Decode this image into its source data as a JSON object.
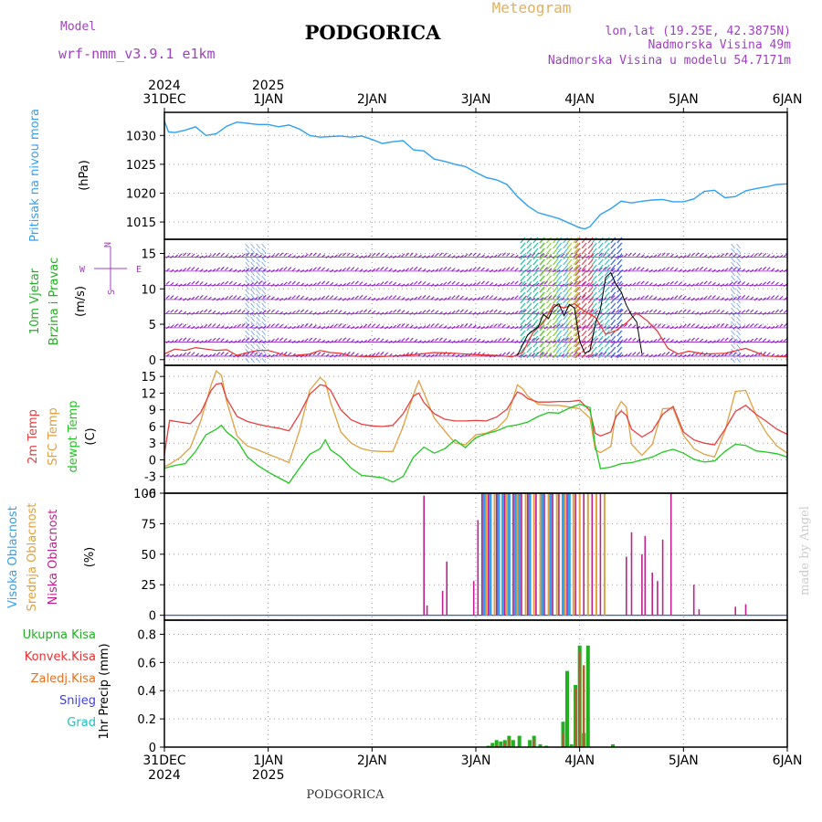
{
  "header": {
    "model_label": "Model",
    "model_name": "wrf-nmm_v3.9.1 e1km",
    "title": "PODGORICA",
    "meteogram_label": "Meteogram",
    "lonlat": "lon,lat (19.25E, 42.3875N)",
    "elevation": "Nadmorska Visina 49m",
    "model_elevation": "Nadmorska Visina u modelu 54.7171m"
  },
  "footer": {
    "station": "PODGORICA",
    "credit": "made by Angel"
  },
  "colors": {
    "pressure": "#30a0f0",
    "wind_speed": "#e83030",
    "wind_ref": "#000000",
    "temp_2m": "#e84040",
    "temp_sfc": "#e0a040",
    "dewpoint": "#20c820",
    "cloud_high": "#30a0f0",
    "cloud_mid": "#e0a040",
    "cloud_low": "#c02090",
    "precip_total": "#20b020",
    "precip_conv": "#e83030",
    "precip_frz": "#e87020",
    "snow": "#4040e0",
    "hail": "#20c0c0",
    "barb_purple": "#9020c0"
  },
  "chart_data": [
    {
      "type": "line",
      "panel": "pressure",
      "ylabel_lines": [
        "Pritisak na nivou mora",
        "(hPa)"
      ],
      "x_unit": "days from 31DEC 00UTC",
      "xlim": [
        0,
        6
      ],
      "ylim": [
        1012,
        1034
      ],
      "yticks": [
        1015,
        1020,
        1025,
        1030
      ],
      "grid": true,
      "x_top_labels": [
        {
          "day": "31DEC",
          "year": "2024"
        },
        {
          "day": "1JAN",
          "year": "2025"
        },
        {
          "day": "2JAN",
          "year": ""
        },
        {
          "day": "3JAN",
          "year": ""
        },
        {
          "day": "4JAN",
          "year": ""
        },
        {
          "day": "5JAN",
          "year": ""
        },
        {
          "day": "6JAN",
          "year": ""
        }
      ],
      "series": [
        {
          "x": [
            0,
            0.04,
            0.1,
            0.2,
            0.3,
            0.4,
            0.5,
            0.6,
            0.7,
            0.8,
            0.9,
            1.0,
            1.1,
            1.2,
            1.3,
            1.4,
            1.5,
            1.6,
            1.7,
            1.8,
            1.9,
            2.0,
            2.1,
            2.2,
            2.3,
            2.4,
            2.5,
            2.6,
            2.7,
            2.8,
            2.9,
            3.0,
            3.1,
            3.2,
            3.3,
            3.4,
            3.5,
            3.6,
            3.7,
            3.8,
            3.9,
            4.0,
            4.05,
            4.1,
            4.2,
            4.3,
            4.4,
            4.5,
            4.6,
            4.7,
            4.8,
            4.9,
            5.0,
            5.1,
            5.2,
            5.3,
            5.4,
            5.5,
            5.6,
            5.7,
            5.8,
            5.9,
            6.0
          ],
          "y": [
            1032.5,
            1030.6,
            1030.5,
            1030.9,
            1031.5,
            1030.0,
            1030.3,
            1031.6,
            1032.3,
            1032.1,
            1031.9,
            1031.9,
            1031.5,
            1031.8,
            1031.1,
            1030.0,
            1029.7,
            1029.8,
            1029.9,
            1029.7,
            1029.9,
            1029.3,
            1028.6,
            1028.9,
            1029.1,
            1027.5,
            1027.3,
            1025.9,
            1025.5,
            1025.0,
            1024.6,
            1023.6,
            1022.7,
            1022.3,
            1021.5,
            1019.4,
            1017.8,
            1016.6,
            1016.1,
            1015.6,
            1014.8,
            1014.0,
            1013.8,
            1014.2,
            1016.3,
            1017.3,
            1018.6,
            1018.3,
            1018.6,
            1018.8,
            1018.9,
            1018.5,
            1018.5,
            1019.0,
            1020.3,
            1020.5,
            1019.2,
            1019.4,
            1020.4,
            1020.8,
            1021.1,
            1021.5,
            1021.6
          ]
        }
      ]
    },
    {
      "type": "line",
      "panel": "wind",
      "ylabel_lines": [
        "10m Vjetar",
        "Brzina i Pravac",
        "(m/s)"
      ],
      "compass": {
        "n": "N",
        "e": "E",
        "w": "W",
        "s": "S"
      },
      "xlim": [
        0,
        6
      ],
      "ylim": [
        -0.8,
        17
      ],
      "yticks": [
        0,
        5,
        10,
        15
      ],
      "grid": true,
      "series": [
        {
          "name": "wind speed",
          "x": [
            0,
            0.1,
            0.2,
            0.3,
            0.4,
            0.5,
            0.6,
            0.7,
            0.8,
            0.9,
            1.0,
            1.2,
            1.4,
            1.5,
            1.6,
            1.7,
            1.8,
            2.0,
            2.2,
            2.4,
            2.6,
            2.8,
            3.0,
            3.2,
            3.35,
            3.45,
            3.55,
            3.65,
            3.75,
            3.85,
            3.95,
            4.05,
            4.15,
            4.25,
            4.35,
            4.45,
            4.55,
            4.65,
            4.75,
            4.85,
            4.95,
            5.05,
            5.2,
            5.4,
            5.6,
            5.8,
            6.0
          ],
          "y": [
            0.8,
            1.5,
            1.3,
            1.7,
            1.5,
            1.3,
            1.4,
            0.6,
            1.0,
            1.3,
            1.3,
            0.5,
            0.8,
            1.3,
            1.0,
            0.9,
            0.5,
            0.4,
            0.5,
            0.7,
            1.0,
            0.9,
            0.7,
            0.6,
            0.4,
            1.0,
            3.8,
            5.2,
            7.8,
            7.3,
            7.9,
            6.8,
            6.0,
            3.6,
            4.1,
            5.2,
            6.6,
            5.5,
            4.0,
            1.6,
            0.8,
            1.2,
            0.8,
            0.9,
            1.6,
            0.5,
            0.4
          ]
        },
        {
          "name": "reference",
          "x": [
            3.4,
            3.45,
            3.5,
            3.55,
            3.6,
            3.65,
            3.7,
            3.75,
            3.8,
            3.85,
            3.9,
            3.95,
            4.0,
            4.05,
            4.1,
            4.15,
            4.2,
            4.25,
            4.3,
            4.35,
            4.4,
            4.45,
            4.5,
            4.55,
            4.6
          ],
          "y": [
            0.6,
            2.1,
            3.5,
            4.1,
            4.6,
            6.4,
            5.8,
            7.4,
            7.9,
            6.2,
            7.8,
            7.3,
            2.6,
            0.9,
            1.3,
            5.0,
            7.1,
            11.6,
            12.3,
            10.6,
            9.6,
            7.7,
            6.3,
            5.3,
            0.8
          ]
        }
      ]
    },
    {
      "type": "line",
      "panel": "temperature",
      "ylabel_lines": [
        "2m Temp",
        "SFC Temp",
        "dewpt Temp",
        "(C)"
      ],
      "xlim": [
        0,
        6
      ],
      "ylim": [
        -6,
        17
      ],
      "yticks": [
        -6,
        -3,
        0,
        3,
        6,
        9,
        12,
        15
      ],
      "grid": true,
      "series": [
        {
          "name": "2m Temp",
          "x": [
            0,
            0.05,
            0.15,
            0.25,
            0.35,
            0.45,
            0.5,
            0.55,
            0.6,
            0.7,
            0.8,
            0.9,
            1.0,
            1.1,
            1.2,
            1.3,
            1.4,
            1.5,
            1.55,
            1.6,
            1.7,
            1.8,
            1.9,
            2.0,
            2.1,
            2.2,
            2.3,
            2.4,
            2.45,
            2.5,
            2.6,
            2.7,
            2.8,
            2.9,
            3.0,
            3.1,
            3.2,
            3.3,
            3.4,
            3.45,
            3.5,
            3.6,
            3.7,
            3.8,
            3.9,
            4.0,
            4.1,
            4.15,
            4.2,
            4.3,
            4.35,
            4.4,
            4.45,
            4.5,
            4.6,
            4.7,
            4.8,
            4.9,
            5.0,
            5.1,
            5.2,
            5.3,
            5.4,
            5.5,
            5.6,
            5.7,
            5.8,
            5.9,
            6.0
          ],
          "y": [
            1.0,
            7.1,
            6.8,
            6.5,
            8.5,
            12.5,
            13.6,
            13.8,
            11.0,
            7.8,
            6.9,
            6.4,
            6.0,
            5.7,
            5.2,
            8.2,
            11.8,
            13.5,
            13.3,
            12.5,
            9.0,
            7.2,
            6.4,
            6.1,
            6.0,
            6.2,
            8.3,
            11.5,
            12.0,
            10.3,
            8.3,
            7.3,
            7.0,
            7.0,
            7.1,
            7.0,
            7.7,
            9.1,
            12.2,
            11.8,
            11.0,
            10.4,
            10.4,
            10.5,
            10.5,
            10.7,
            8.8,
            4.8,
            4.3,
            5.0,
            7.8,
            8.8,
            8.0,
            5.5,
            4.1,
            5.2,
            8.2,
            9.6,
            5.0,
            3.6,
            3.0,
            2.7,
            5.5,
            8.7,
            9.8,
            8.2,
            6.9,
            5.5,
            4.6
          ]
        },
        {
          "name": "SFC Temp",
          "x": [
            0,
            0.05,
            0.15,
            0.25,
            0.35,
            0.45,
            0.5,
            0.55,
            0.6,
            0.7,
            0.8,
            0.9,
            1.0,
            1.1,
            1.2,
            1.3,
            1.4,
            1.5,
            1.55,
            1.6,
            1.7,
            1.8,
            1.9,
            2.0,
            2.1,
            2.2,
            2.3,
            2.4,
            2.45,
            2.5,
            2.6,
            2.7,
            2.8,
            2.9,
            3.0,
            3.1,
            3.2,
            3.3,
            3.4,
            3.45,
            3.5,
            3.6,
            3.7,
            3.8,
            3.9,
            4.0,
            4.1,
            4.15,
            4.2,
            4.3,
            4.35,
            4.4,
            4.45,
            4.5,
            4.6,
            4.7,
            4.8,
            4.9,
            5.0,
            5.1,
            5.2,
            5.3,
            5.4,
            5.5,
            5.6,
            5.7,
            5.8,
            5.9,
            6.0
          ],
          "y": [
            -1.2,
            -0.8,
            0.4,
            2.2,
            7.0,
            13.5,
            16.0,
            15.2,
            10.5,
            4.3,
            2.5,
            1.8,
            1.0,
            0.3,
            -0.5,
            5.2,
            12.5,
            14.8,
            14.0,
            10.4,
            5.0,
            3.0,
            2.0,
            1.6,
            1.5,
            1.5,
            6.0,
            11.8,
            14.2,
            12.0,
            7.5,
            5.2,
            3.0,
            2.7,
            4.5,
            4.8,
            5.6,
            7.5,
            13.5,
            12.8,
            11.5,
            10.0,
            9.8,
            9.8,
            9.5,
            9.2,
            7.5,
            1.8,
            1.3,
            2.4,
            8.8,
            10.5,
            9.5,
            2.8,
            0.8,
            2.8,
            9.2,
            9.3,
            4.4,
            2.0,
            1.0,
            0.5,
            5.2,
            12.3,
            12.5,
            8.0,
            4.8,
            2.5,
            1.2
          ]
        },
        {
          "name": "dewpt Temp",
          "x": [
            0,
            0.1,
            0.2,
            0.3,
            0.4,
            0.5,
            0.55,
            0.6,
            0.7,
            0.8,
            0.9,
            1.0,
            1.1,
            1.2,
            1.3,
            1.4,
            1.5,
            1.55,
            1.6,
            1.7,
            1.8,
            1.9,
            2.0,
            2.1,
            2.2,
            2.3,
            2.4,
            2.5,
            2.6,
            2.7,
            2.8,
            2.9,
            3.0,
            3.1,
            3.2,
            3.3,
            3.4,
            3.5,
            3.6,
            3.7,
            3.8,
            3.9,
            4.0,
            4.1,
            4.15,
            4.2,
            4.3,
            4.4,
            4.5,
            4.6,
            4.7,
            4.8,
            4.9,
            5.0,
            5.1,
            5.2,
            5.3,
            5.4,
            5.5,
            5.6,
            5.7,
            5.8,
            5.9,
            6.0
          ],
          "y": [
            -1.5,
            -1.0,
            -0.7,
            1.5,
            4.5,
            5.5,
            6.2,
            5.0,
            3.5,
            0.5,
            -1.0,
            -2.2,
            -3.2,
            -4.2,
            -1.5,
            1.0,
            2.0,
            3.6,
            1.8,
            0.5,
            -1.5,
            -2.8,
            -3.0,
            -3.2,
            -4.0,
            -3.0,
            0.5,
            2.3,
            1.2,
            2.0,
            3.6,
            2.2,
            4.0,
            4.7,
            5.2,
            6.0,
            6.3,
            6.8,
            7.8,
            8.5,
            8.4,
            9.3,
            10.0,
            9.4,
            2.6,
            -1.6,
            -1.3,
            -0.7,
            -0.5,
            0.0,
            0.5,
            1.4,
            1.9,
            1.2,
            0.1,
            -0.4,
            -0.2,
            1.5,
            2.8,
            2.6,
            1.6,
            1.4,
            1.1,
            0.5
          ]
        }
      ]
    },
    {
      "type": "bar",
      "panel": "cloud",
      "ylabel_lines": [
        "Visoka Oblacnost",
        "Srednja Oblacnost",
        "Niska Oblacnost",
        "(%)"
      ],
      "xlim": [
        0,
        6
      ],
      "ylim": [
        -4,
        100
      ],
      "yticks": [
        0,
        25,
        50,
        75,
        100
      ],
      "grid": true,
      "low": {
        "x": [
          2.5,
          2.53,
          2.68,
          2.72,
          2.98,
          3.02,
          3.06,
          3.12,
          3.2,
          3.28,
          3.36,
          3.44,
          3.5,
          3.58,
          3.66,
          3.74,
          3.8,
          3.88,
          3.96,
          4.04,
          4.12,
          4.2,
          4.45,
          4.5,
          4.6,
          4.63,
          4.7,
          4.75,
          4.8,
          4.88,
          5.1,
          5.15,
          5.5,
          5.6
        ],
        "values": [
          98,
          8,
          20,
          44,
          28,
          78,
          100,
          100,
          100,
          100,
          100,
          100,
          100,
          100,
          100,
          100,
          100,
          100,
          100,
          100,
          100,
          100,
          48,
          68,
          50,
          65,
          35,
          28,
          62,
          100,
          25,
          5,
          7,
          9
        ]
      },
      "mid": {
        "x": [
          3.1,
          3.18,
          3.3,
          3.4,
          3.48,
          3.56,
          3.62,
          3.7,
          3.78,
          3.86,
          3.94,
          4.0,
          4.08,
          4.16,
          4.24
        ],
        "values": [
          100,
          100,
          100,
          100,
          100,
          100,
          100,
          100,
          100,
          100,
          100,
          100,
          100,
          100,
          100
        ]
      },
      "high": {
        "x": [
          3.08,
          3.14,
          3.22,
          3.26,
          3.32,
          3.38,
          3.42,
          3.52,
          3.64,
          3.72,
          3.84,
          3.9
        ],
        "values": [
          100,
          100,
          100,
          100,
          100,
          100,
          100,
          100,
          100,
          100,
          100,
          100
        ]
      }
    },
    {
      "type": "bar",
      "panel": "precip",
      "ylabel": "1hr Precip (mm)",
      "legend": [
        "Ukupna Kisa",
        "Konvek.Kisa",
        "Zaledj.Kisa",
        "Snijeg",
        "Grad"
      ],
      "xlim": [
        0,
        6
      ],
      "ylim": [
        0,
        0.9
      ],
      "yticks": [
        0,
        0.2,
        0.4,
        0.6,
        0.8
      ],
      "grid": true,
      "x_bottom_labels": [
        {
          "day": "31DEC",
          "year": "2024"
        },
        {
          "day": "1JAN",
          "year": "2025"
        },
        {
          "day": "2JAN",
          "year": ""
        },
        {
          "day": "3JAN",
          "year": ""
        },
        {
          "day": "4JAN",
          "year": ""
        },
        {
          "day": "5JAN",
          "year": ""
        },
        {
          "day": "6JAN",
          "year": ""
        }
      ],
      "total": {
        "x": [
          3.12,
          3.16,
          3.2,
          3.24,
          3.28,
          3.32,
          3.36,
          3.42,
          3.52,
          3.56,
          3.62,
          3.68,
          3.84,
          3.88,
          3.92,
          3.96,
          4.0,
          4.04,
          4.08,
          4.32
        ],
        "values": [
          0.01,
          0.03,
          0.05,
          0.04,
          0.05,
          0.08,
          0.05,
          0.08,
          0.05,
          0.08,
          0.02,
          0.01,
          0.18,
          0.54,
          0.02,
          0.44,
          0.72,
          0.1,
          0.72,
          0.02
        ]
      },
      "convective": {
        "x": [
          3.2,
          3.28,
          3.32,
          3.56,
          3.84,
          3.96,
          4.0,
          4.04
        ],
        "values": [
          0.02,
          0.03,
          0.06,
          0.05,
          0.1,
          0.42,
          0.68,
          0.58
        ]
      }
    }
  ]
}
